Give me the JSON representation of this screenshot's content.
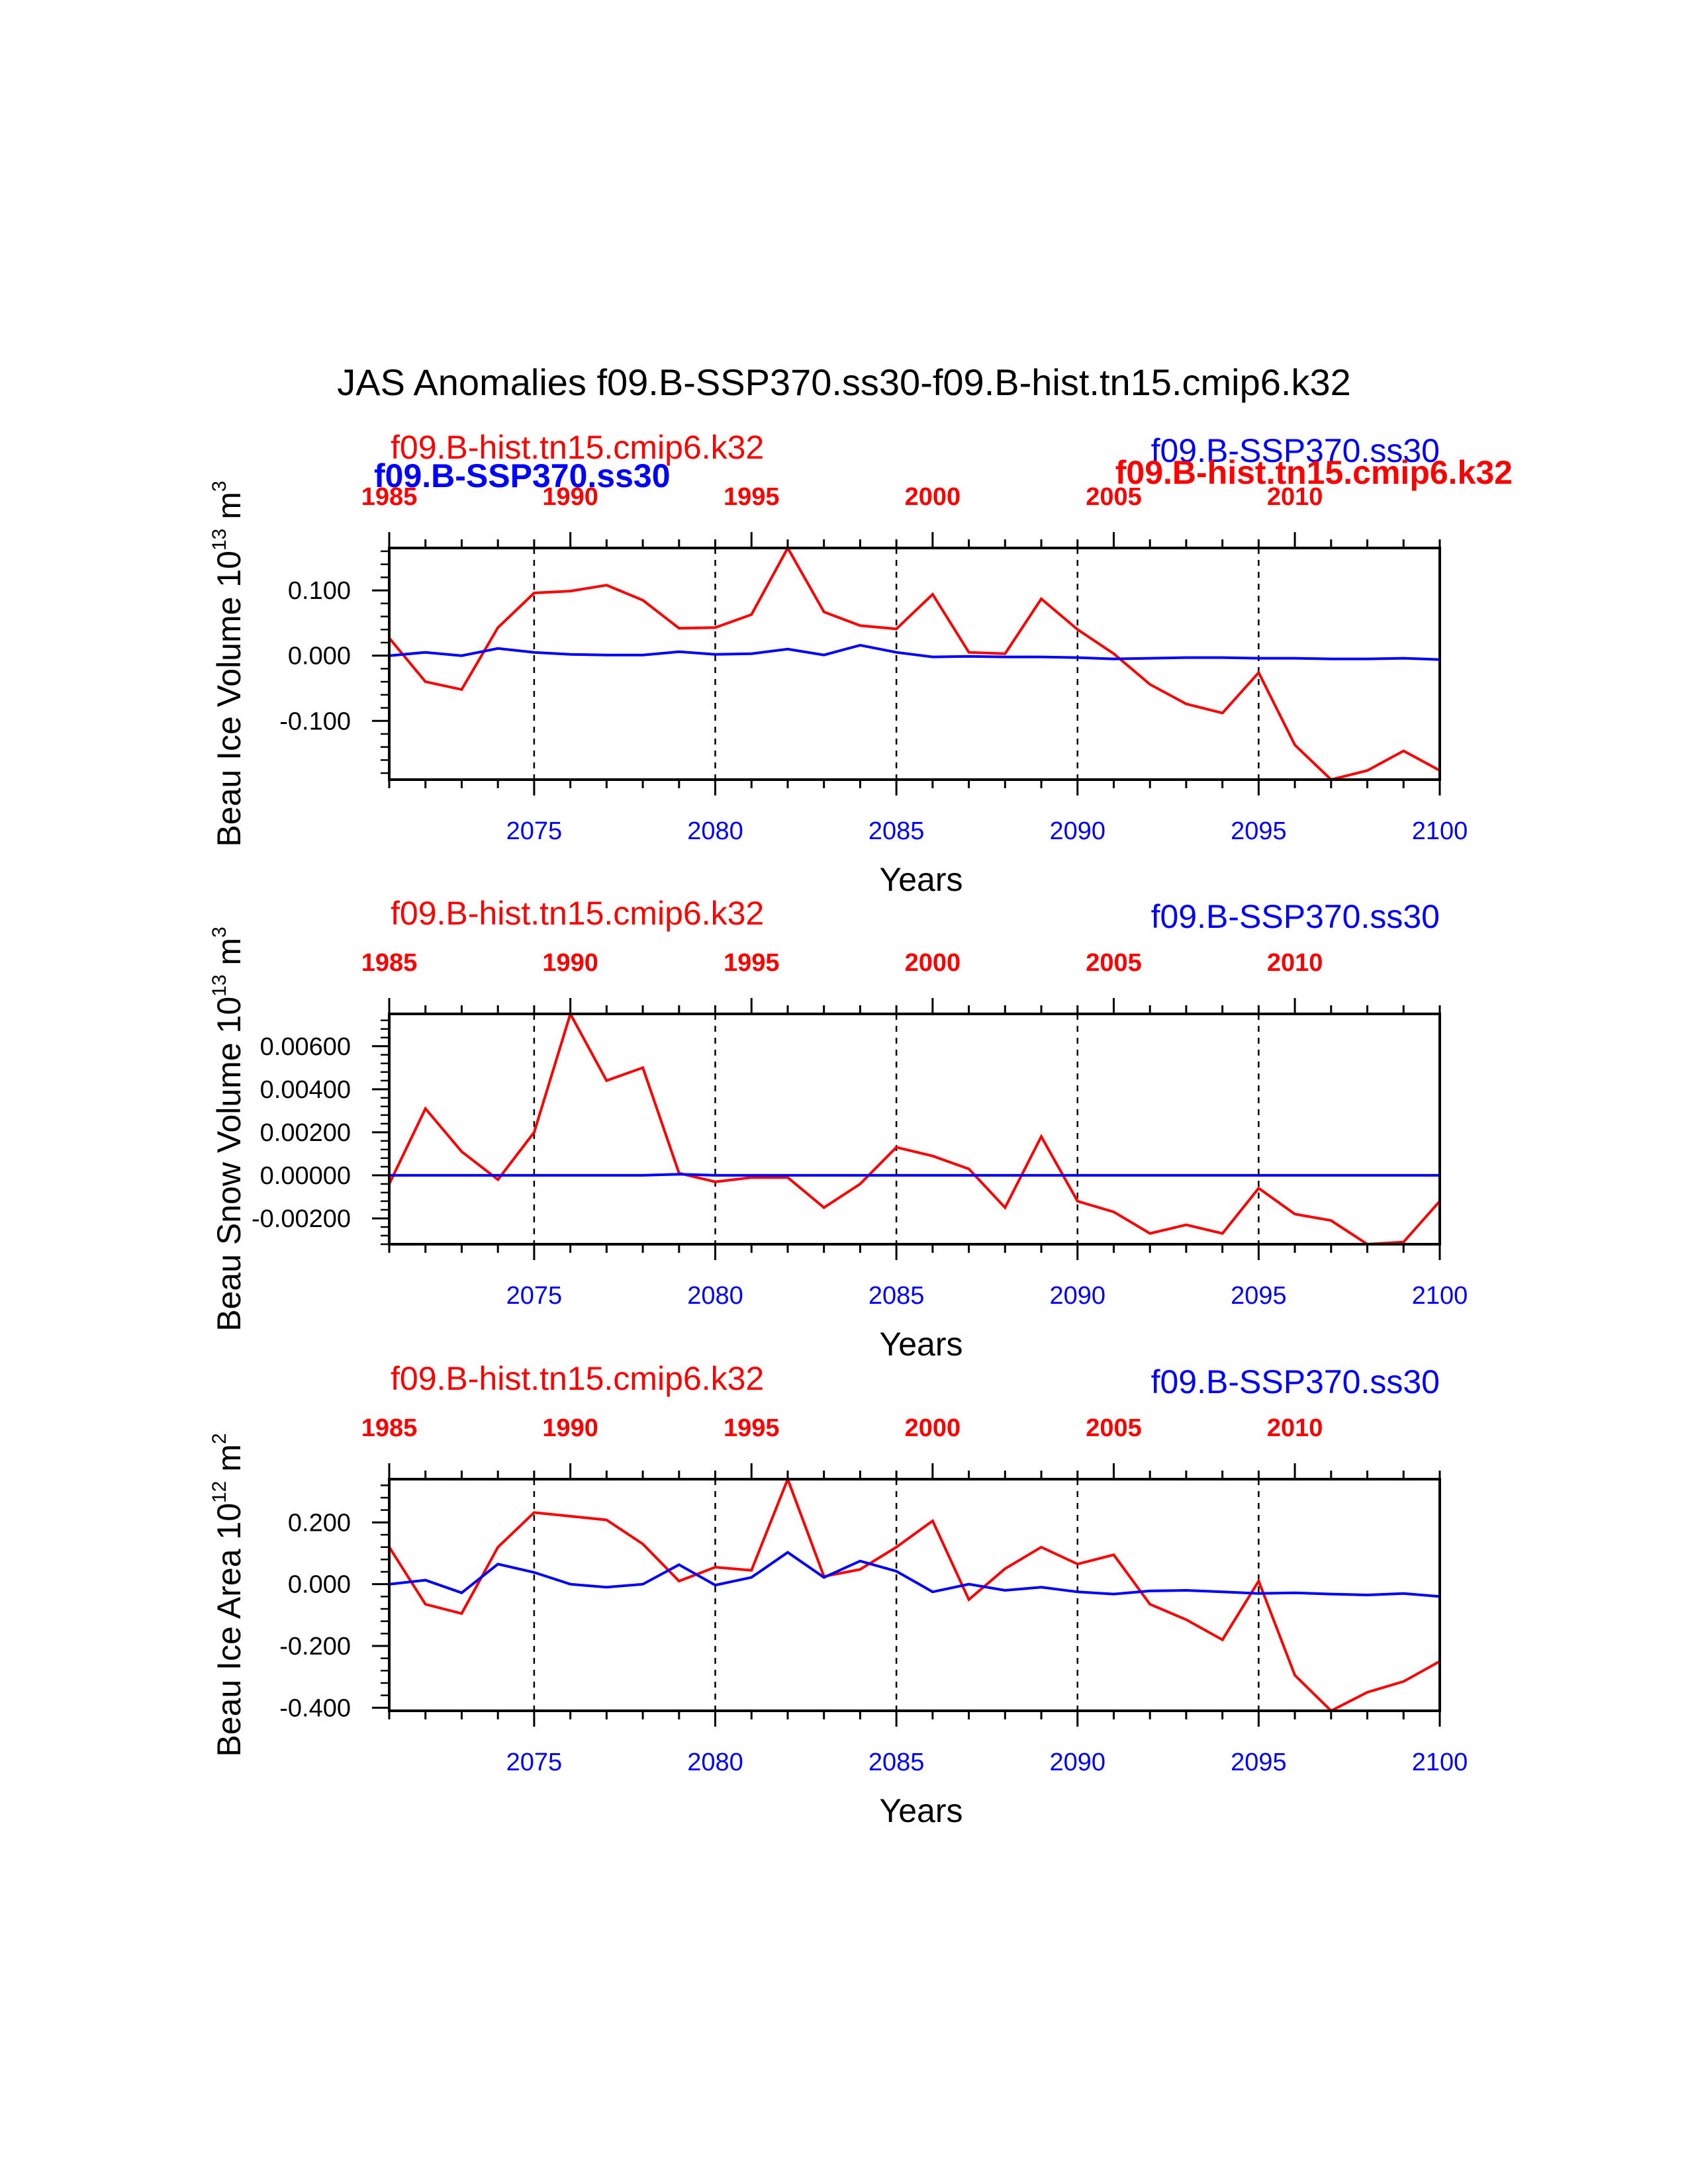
{
  "title": "JAS Anomalies f09.B-SSP370.ss30-f09.B-hist.tn15.cmip6.k32",
  "colors": {
    "hist": "#ff0000",
    "ssp": "#0000ff",
    "axis": "#000000"
  },
  "chart_data": [
    {
      "type": "line",
      "ylabel": "Beau Ice Volume 10",
      "ylabel_unit": "m",
      "ylabel_exp": "13",
      "ylabel_unit_exp": "3",
      "xlabel": "Years",
      "legend_hist": "f09.B-hist.tn15.cmip6.k32",
      "legend_ssp": "f09.B-SSP370.ss30",
      "legend_overlap_bold_ssp": "f09.B-SSP370.ss30",
      "legend_overlap_bold_hist": "f09.B-hist.tn15.cmip6.k32",
      "ylim": [
        -0.19,
        0.165
      ],
      "yticks": [
        0.1,
        0.0,
        -0.1
      ],
      "ytick_labels": [
        "0.100",
        "0.000",
        "-0.100"
      ],
      "x_bottom": {
        "lim": [
          2071,
          2100
        ],
        "ticks": [
          2075,
          2080,
          2085,
          2090,
          2095,
          2100
        ]
      },
      "x_top": {
        "lim": [
          1985,
          2014
        ],
        "ticks": [
          1985,
          1990,
          1995,
          2000,
          2005,
          2010
        ]
      },
      "series": [
        {
          "name": "f09.B-hist.tn15.cmip6.k32",
          "values": [
            0.027,
            -0.04,
            -0.052,
            0.043,
            0.096,
            0.099,
            0.108,
            0.085,
            0.042,
            0.043,
            0.063,
            0.165,
            0.067,
            0.046,
            0.041,
            0.094,
            0.005,
            0.003,
            0.087,
            0.04,
            0.003,
            -0.044,
            -0.074,
            -0.088,
            -0.026,
            -0.137,
            -0.19,
            -0.176,
            -0.146,
            -0.176
          ]
        },
        {
          "name": "f09.B-SSP370.ss30",
          "values": [
            0.0,
            0.005,
            0.0,
            0.011,
            0.005,
            0.002,
            0.001,
            0.001,
            0.006,
            0.002,
            0.003,
            0.01,
            0.001,
            0.016,
            0.005,
            -0.002,
            -0.001,
            -0.002,
            -0.002,
            -0.003,
            -0.005,
            -0.004,
            -0.003,
            -0.003,
            -0.004,
            -0.004,
            -0.005,
            -0.005,
            -0.004,
            -0.006
          ]
        }
      ]
    },
    {
      "type": "line",
      "ylabel": "Beau Snow Volume 10",
      "ylabel_unit": "m",
      "ylabel_exp": "13",
      "ylabel_unit_exp": "3",
      "xlabel": "Years",
      "legend_hist": "f09.B-hist.tn15.cmip6.k32",
      "legend_ssp": "f09.B-SSP370.ss30",
      "ylim": [
        -0.0032,
        0.0075
      ],
      "yticks": [
        0.006,
        0.004,
        0.002,
        0.0,
        -0.002
      ],
      "ytick_labels": [
        "0.00600",
        "0.00400",
        "0.00200",
        "0.00000",
        "-0.00200"
      ],
      "x_bottom": {
        "lim": [
          2071,
          2100
        ],
        "ticks": [
          2075,
          2080,
          2085,
          2090,
          2095,
          2100
        ]
      },
      "x_top": {
        "lim": [
          1985,
          2014
        ],
        "ticks": [
          1985,
          1990,
          1995,
          2000,
          2005,
          2010
        ]
      },
      "series": [
        {
          "name": "f09.B-hist.tn15.cmip6.k32",
          "values": [
            -0.0004,
            0.0031,
            0.0011,
            -0.0002,
            0.002,
            0.0075,
            0.0044,
            0.005,
            0.0001,
            -0.0003,
            -0.0001,
            -0.0001,
            -0.0015,
            -0.0004,
            0.0013,
            0.0009,
            0.0003,
            -0.0015,
            0.0018,
            -0.0012,
            -0.0017,
            -0.0027,
            -0.0023,
            -0.0027,
            -0.0006,
            -0.0018,
            -0.0021,
            -0.0032,
            -0.0031,
            -0.0012
          ]
        },
        {
          "name": "f09.B-SSP370.ss30",
          "values": [
            0,
            0,
            0,
            0,
            0,
            0,
            0,
            0,
            5e-05,
            0,
            0,
            0,
            0,
            0,
            0,
            0,
            0,
            0,
            0,
            0,
            0,
            0,
            0,
            0,
            0,
            0,
            0,
            0,
            0,
            0
          ]
        }
      ]
    },
    {
      "type": "line",
      "ylabel": "Beau Ice Area 10",
      "ylabel_unit": "m",
      "ylabel_exp": "12",
      "ylabel_unit_exp": "2",
      "xlabel": "Years",
      "legend_hist": "f09.B-hist.tn15.cmip6.k32",
      "legend_ssp": "f09.B-SSP370.ss30",
      "ylim": [
        -0.41,
        0.34
      ],
      "yticks": [
        0.2,
        0.0,
        -0.2,
        -0.4
      ],
      "ytick_labels": [
        "0.200",
        "0.000",
        "-0.200",
        "-0.400"
      ],
      "x_bottom": {
        "lim": [
          2071,
          2100
        ],
        "ticks": [
          2075,
          2080,
          2085,
          2090,
          2095,
          2100
        ]
      },
      "x_top": {
        "lim": [
          1985,
          2014
        ],
        "ticks": [
          1985,
          1990,
          1995,
          2000,
          2005,
          2010
        ]
      },
      "series": [
        {
          "name": "f09.B-hist.tn15.cmip6.k32",
          "values": [
            0.12,
            -0.065,
            -0.095,
            0.12,
            0.232,
            0.22,
            0.208,
            0.13,
            0.01,
            0.055,
            0.045,
            0.34,
            0.025,
            0.048,
            0.12,
            0.205,
            -0.05,
            0.05,
            0.12,
            0.065,
            0.095,
            -0.065,
            -0.115,
            -0.18,
            0.01,
            -0.295,
            -0.41,
            -0.35,
            -0.315,
            -0.25
          ]
        },
        {
          "name": "f09.B-SSP370.ss30",
          "values": [
            0.0,
            0.013,
            -0.028,
            0.065,
            0.038,
            0.0,
            -0.01,
            0.0,
            0.063,
            -0.003,
            0.022,
            0.103,
            0.022,
            0.075,
            0.042,
            -0.025,
            0.0,
            -0.02,
            -0.01,
            -0.025,
            -0.032,
            -0.022,
            -0.02,
            -0.025,
            -0.03,
            -0.028,
            -0.032,
            -0.035,
            -0.03,
            -0.04
          ]
        }
      ]
    }
  ]
}
